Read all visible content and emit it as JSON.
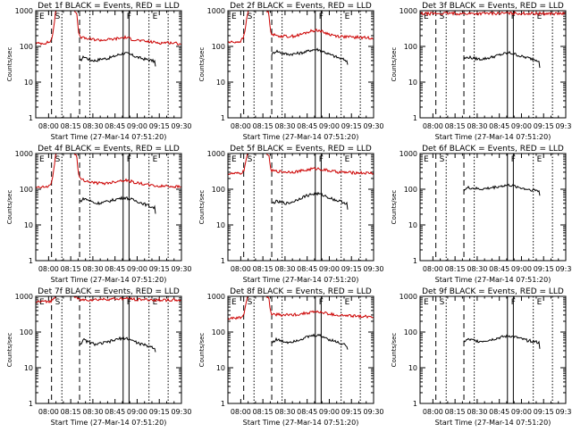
{
  "panels": [
    {
      "title": "Det 1f BLACK = Events, RED = LLD",
      "xlabel": "Start Time (27-Mar-14 07:51:20)",
      "ylabel": "Counts/sec"
    },
    {
      "title": "Det 2f BLACK = Events, RED = LLD",
      "xlabel": "Start Time (27-Mar-14 07:51:20)",
      "ylabel": "Counts/sec"
    },
    {
      "title": "Det 3f BLACK = Events, RED = LLD",
      "xlabel": "Start Time (27-Mar-14 07:51:20)",
      "ylabel": "Counts/sec"
    },
    {
      "title": "Det 4f BLACK = Events, RED = LLD",
      "xlabel": "Start Time (27-Mar-14 07:51:20)",
      "ylabel": "Counts/sec"
    },
    {
      "title": "Det 5f BLACK = Events, RED = LLD",
      "xlabel": "Start Time (27-Mar-14 07:51:20)",
      "ylabel": "Counts/sec"
    },
    {
      "title": "Det 6f BLACK = Events, RED = LLD",
      "xlabel": "Start Time (27-Mar-14 07:51:20)",
      "ylabel": "Counts/sec"
    },
    {
      "title": "Det 7f BLACK = Events, RED = LLD",
      "xlabel": "Start Time (27-Mar-14 07:51:20)",
      "ylabel": "Counts/sec"
    },
    {
      "title": "Det 8f BLACK = Events, RED = LLD",
      "xlabel": "Start Time (27-Mar-14 07:51:20)",
      "ylabel": "Counts/sec"
    },
    {
      "title": "Det 9f BLACK = Events, RED = LLD",
      "xlabel": "Start Time (27-Mar-14 07:51:20)",
      "ylabel": "Counts/sec"
    }
  ],
  "chart_data": {
    "type": "line",
    "layout": "3x3 grid of time-series panels",
    "yscale": "log",
    "ylim": [
      1,
      1000
    ],
    "y_ticks": [
      "1",
      "10",
      "100",
      "1000"
    ],
    "x_ticks": [
      "08:00",
      "08:15",
      "08:30",
      "08:45",
      "09:00",
      "09:15",
      "09:30"
    ],
    "x_tick_minutes": [
      0,
      15,
      30,
      45,
      60,
      75,
      90
    ],
    "xlim_minutes_from_0800": [
      -8.7,
      90
    ],
    "colors": {
      "events": "#000000",
      "lld": "#cc0000"
    },
    "series_notes": "BLACK = Events, RED = LLD",
    "event_markers": [
      {
        "label": "E",
        "style": "solid",
        "minute": -8.7
      },
      {
        "label": "S",
        "style": "dashed",
        "minute": 2
      },
      {
        "label": "",
        "style": "dotted",
        "minute": 9
      },
      {
        "label": "",
        "style": "dashed",
        "minute": 21
      },
      {
        "label": "",
        "style": "dotted",
        "minute": 28
      },
      {
        "label": "F",
        "style": "solid",
        "minute": 50.5
      },
      {
        "label": "",
        "style": "solid",
        "minute": 54.5
      },
      {
        "label": "E",
        "style": "dotted",
        "minute": 68
      },
      {
        "label": "",
        "style": "dotted",
        "minute": 81
      }
    ],
    "panels": [
      {
        "det": "1f",
        "events": {
          "x": [
            21,
            24,
            28,
            32,
            36,
            40,
            44,
            48,
            52,
            56,
            60,
            64,
            68,
            72,
            73
          ],
          "y": [
            38,
            52,
            42,
            40,
            45,
            46,
            52,
            60,
            65,
            58,
            50,
            45,
            42,
            38,
            18
          ]
        },
        "lld": {
          "x": [
            -8.7,
            -2,
            0,
            2,
            3,
            5,
            8,
            10,
            12,
            14,
            16,
            18,
            19,
            20,
            21,
            24,
            28,
            32,
            36,
            40,
            44,
            48,
            52,
            56,
            60,
            64,
            68,
            72,
            76,
            80,
            84,
            88,
            90
          ],
          "y": [
            120,
            125,
            130,
            150,
            250,
            1100,
            1100,
            1100,
            1100,
            1100,
            1100,
            1000,
            900,
            300,
            190,
            170,
            160,
            155,
            150,
            155,
            160,
            170,
            180,
            160,
            150,
            140,
            135,
            130,
            125,
            130,
            125,
            120,
            120
          ]
        }
      },
      {
        "det": "2f",
        "events": {
          "x": [
            21,
            24,
            28,
            32,
            36,
            40,
            44,
            48,
            52,
            56,
            60,
            64,
            68,
            72,
            73
          ],
          "y": [
            60,
            75,
            65,
            60,
            62,
            65,
            70,
            80,
            82,
            72,
            60,
            52,
            45,
            40,
            20
          ]
        },
        "lld": {
          "x": [
            -8.7,
            -2,
            0,
            2,
            3,
            5,
            8,
            10,
            12,
            14,
            16,
            18,
            19,
            20,
            21,
            24,
            28,
            32,
            36,
            40,
            44,
            48,
            52,
            56,
            60,
            64,
            68,
            72,
            76,
            80,
            84,
            88,
            90
          ],
          "y": [
            130,
            135,
            140,
            180,
            300,
            1100,
            1100,
            1100,
            1100,
            1100,
            1100,
            1000,
            900,
            320,
            220,
            200,
            195,
            190,
            195,
            210,
            240,
            270,
            290,
            250,
            220,
            200,
            190,
            185,
            180,
            180,
            175,
            175,
            175
          ]
        }
      },
      {
        "det": "3f",
        "events": {
          "x": [
            21,
            24,
            28,
            32,
            36,
            40,
            44,
            48,
            52,
            56,
            60,
            64,
            68,
            72,
            73
          ],
          "y": [
            45,
            50,
            46,
            44,
            46,
            50,
            56,
            62,
            66,
            60,
            52,
            48,
            44,
            40,
            18
          ]
        },
        "lld": {
          "x": [
            -8.7,
            0,
            10,
            20,
            30,
            40,
            50,
            60,
            70,
            80,
            90
          ],
          "y": [
            820,
            830,
            840,
            830,
            835,
            840,
            850,
            840,
            830,
            830,
            825
          ]
        }
      },
      {
        "det": "4f",
        "events": {
          "x": [
            21,
            24,
            28,
            32,
            36,
            40,
            44,
            48,
            52,
            56,
            60,
            64,
            68,
            72,
            73
          ],
          "y": [
            45,
            55,
            48,
            40,
            42,
            45,
            50,
            55,
            58,
            52,
            46,
            40,
            34,
            30,
            15
          ]
        },
        "lld": {
          "x": [
            -8.7,
            -2,
            0,
            2,
            3,
            5,
            8,
            10,
            12,
            14,
            16,
            18,
            19,
            20,
            21,
            24,
            28,
            32,
            36,
            40,
            44,
            48,
            52,
            56,
            60,
            64,
            68,
            72,
            76,
            80,
            84,
            88,
            90
          ],
          "y": [
            110,
            115,
            120,
            150,
            250,
            1100,
            1100,
            1100,
            1100,
            1100,
            1100,
            1000,
            900,
            300,
            200,
            180,
            160,
            150,
            145,
            150,
            160,
            175,
            180,
            165,
            150,
            140,
            130,
            125,
            120,
            125,
            120,
            118,
            115
          ]
        }
      },
      {
        "det": "5f",
        "events": {
          "x": [
            21,
            24,
            28,
            32,
            36,
            40,
            44,
            48,
            52,
            56,
            60,
            64,
            68,
            72,
            73
          ],
          "y": [
            40,
            45,
            42,
            40,
            46,
            55,
            65,
            72,
            75,
            68,
            58,
            50,
            45,
            40,
            18
          ]
        },
        "lld": {
          "x": [
            -8.7,
            -2,
            0,
            2,
            3,
            5,
            8,
            10,
            12,
            14,
            16,
            18,
            19,
            20,
            21,
            24,
            28,
            32,
            36,
            40,
            44,
            48,
            52,
            56,
            60,
            64,
            68,
            72,
            76,
            80,
            84,
            88,
            90
          ],
          "y": [
            270,
            275,
            280,
            320,
            500,
            1100,
            1100,
            1100,
            1100,
            1100,
            1100,
            1000,
            900,
            400,
            330,
            320,
            310,
            305,
            310,
            320,
            340,
            370,
            380,
            350,
            330,
            310,
            300,
            295,
            290,
            290,
            285,
            285,
            280
          ]
        }
      },
      {
        "det": "6f",
        "events": {
          "x": [
            21,
            24,
            28,
            32,
            36,
            40,
            44,
            48,
            52,
            56,
            60,
            64,
            68,
            72,
            73
          ],
          "y": [
            95,
            110,
            105,
            100,
            104,
            110,
            118,
            125,
            130,
            120,
            108,
            100,
            95,
            90,
            45
          ]
        },
        "lld": {
          "x": [],
          "y": []
        }
      },
      {
        "det": "7f",
        "events": {
          "x": [
            21,
            24,
            28,
            32,
            36,
            40,
            44,
            48,
            52,
            56,
            60,
            64,
            68,
            72,
            73
          ],
          "y": [
            45,
            60,
            50,
            45,
            48,
            52,
            58,
            65,
            68,
            60,
            50,
            44,
            40,
            36,
            18
          ]
        },
        "lld": {
          "x": [
            -8.7,
            -2,
            0,
            2,
            3,
            5,
            8,
            10,
            12,
            14,
            16,
            18,
            19,
            20,
            21,
            24,
            28,
            32,
            36,
            40,
            44,
            48,
            52,
            56,
            60,
            64,
            68,
            72,
            76,
            80,
            84,
            88,
            90
          ],
          "y": [
            700,
            710,
            720,
            750,
            800,
            1100,
            1100,
            1100,
            1100,
            1100,
            1100,
            1000,
            950,
            820,
            800,
            790,
            800,
            810,
            820,
            830,
            840,
            850,
            860,
            840,
            820,
            810,
            800,
            790,
            790,
            785,
            780,
            780,
            780
          ]
        }
      },
      {
        "det": "8f",
        "events": {
          "x": [
            21,
            24,
            28,
            32,
            36,
            40,
            44,
            48,
            52,
            56,
            60,
            64,
            68,
            72,
            73
          ],
          "y": [
            50,
            62,
            55,
            52,
            56,
            62,
            70,
            78,
            82,
            74,
            62,
            55,
            48,
            42,
            20
          ]
        },
        "lld": {
          "x": [
            -8.7,
            -2,
            0,
            2,
            3,
            5,
            8,
            10,
            12,
            14,
            16,
            18,
            19,
            20,
            21,
            24,
            28,
            32,
            36,
            40,
            44,
            48,
            52,
            56,
            60,
            64,
            68,
            72,
            76,
            80,
            84,
            88,
            90
          ],
          "y": [
            240,
            245,
            250,
            300,
            480,
            1100,
            1100,
            1100,
            1100,
            1100,
            1100,
            1000,
            900,
            380,
            320,
            310,
            300,
            300,
            305,
            320,
            340,
            360,
            370,
            345,
            320,
            300,
            290,
            285,
            280,
            280,
            275,
            270,
            270
          ]
        }
      },
      {
        "det": "9f",
        "events": {
          "x": [
            21,
            24,
            28,
            32,
            36,
            40,
            44,
            48,
            52,
            56,
            60,
            64,
            68,
            72,
            73
          ],
          "y": [
            55,
            62,
            58,
            55,
            58,
            62,
            68,
            74,
            78,
            72,
            64,
            58,
            55,
            50,
            25
          ]
        },
        "lld": {
          "x": [],
          "y": []
        }
      }
    ]
  }
}
